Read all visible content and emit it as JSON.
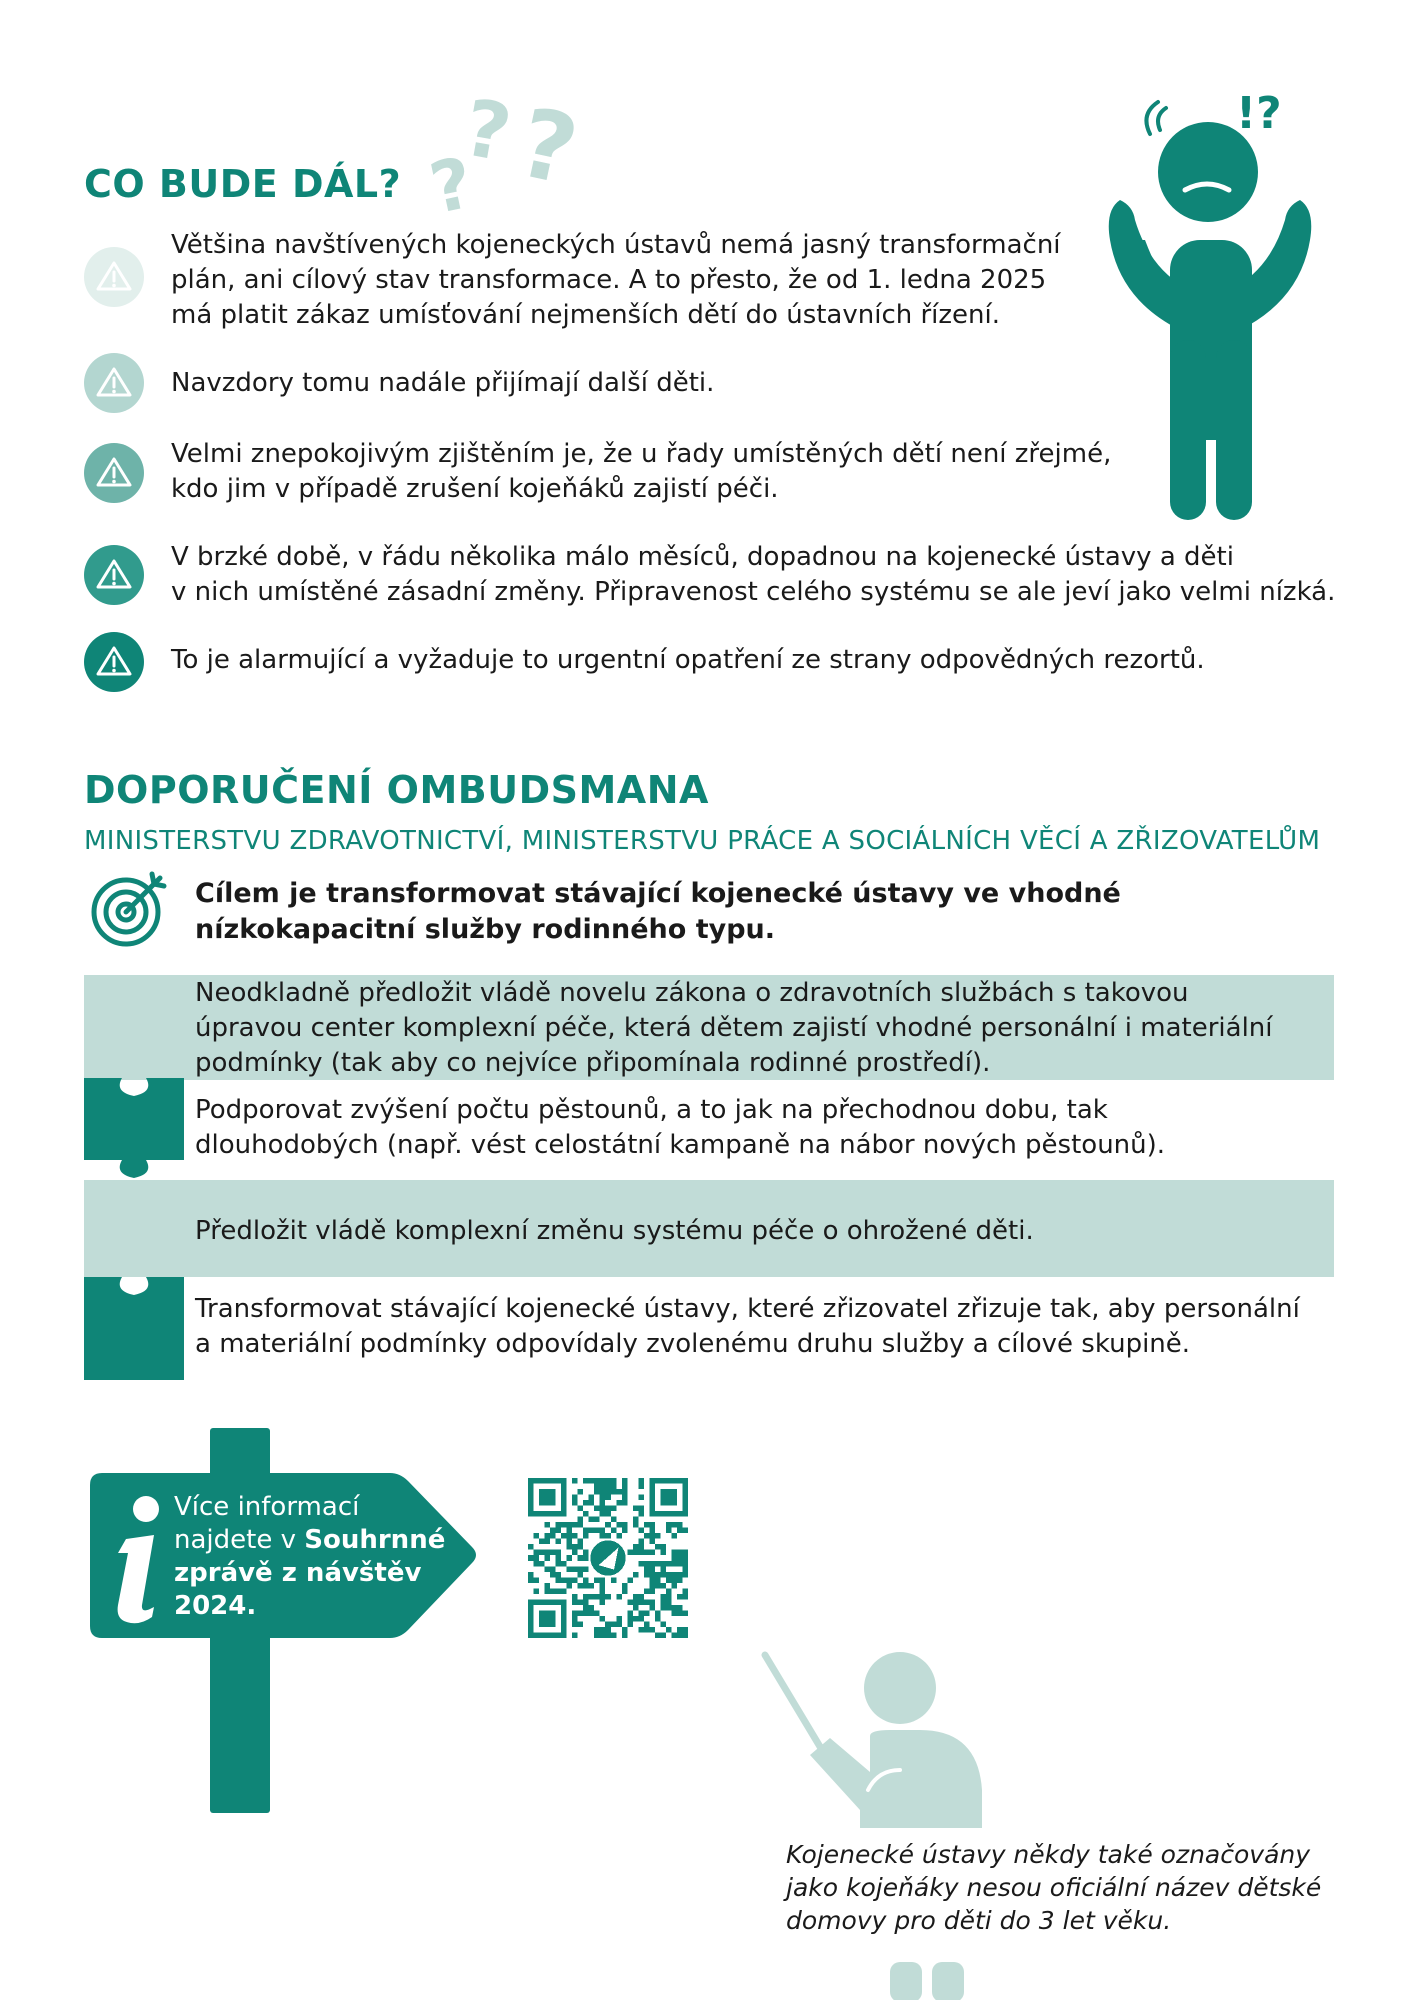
{
  "section1": {
    "title": "CO BUDE DÁL?",
    "items": [
      {
        "lines": [
          "Většina navštívených kojeneckých ústavů nemá jasný transformační",
          "plán, ani cílový stav transformace. A to přesto, že od 1. ledna 2025",
          "má platit zákaz umísťování nejmenších dětí do ústavních řízení."
        ]
      },
      {
        "lines": [
          "Navzdory tomu nadále přijímají další děti."
        ]
      },
      {
        "lines": [
          "Velmi znepokojivým zjištěním je, že u řady umístěných dětí není zřejmé,",
          "kdo jim v případě zrušení kojeňáků zajistí péči."
        ]
      },
      {
        "lines": [
          "V brzké době, v řádu několika málo měsíců, dopadnou na kojenecké ústavy a děti",
          "v nich umístěné zásadní změny. Připravenost celého systému se ale jeví jako velmi nízká."
        ]
      },
      {
        "lines": [
          "To je alarmující a vyžaduje to urgentní opatření ze strany odpovědných rezortů."
        ]
      }
    ],
    "figure_exclaim": "!?"
  },
  "section2": {
    "title": "DOPORUČENÍ OMBUDSMANA",
    "subtitle": "MINISTERSTVU ZDRAVOTNICTVÍ, MINISTERSTVU PRÁCE A SOCIÁLNÍCH VĚCÍ A ZŘIZOVATELŮM",
    "goal_lines": [
      "Cílem je transformovat stávající kojenecké ústavy ve vhodné",
      "nízkokapacitní služby rodinného typu."
    ],
    "recommendations": [
      {
        "lines": [
          "Neodkladně předložit vládě novelu zákona o zdravotních službách s takovou",
          "úpravou center komplexní péče, která dětem zajistí vhodné personální i materiální",
          "podmínky (tak aby co nejvíce připomínala rodinné prostředí)."
        ]
      },
      {
        "lines": [
          "Podporovat zvýšení počtu pěstounů, a to jak na přechodnou dobu, tak",
          "dlouhodobých (např. vést celostátní kampaně na nábor nových pěstounů)."
        ]
      },
      {
        "lines": [
          "Předložit vládě komplexní změnu systému péče o ohrožené děti."
        ]
      },
      {
        "lines": [
          "Transformovat stávající kojenecké ústavy, které zřizovatel zřizuje tak, aby personální",
          "a materiální podmínky odpovídaly zvolenému druhu služby a cílové skupině."
        ]
      }
    ]
  },
  "info": {
    "line1": "Více informací",
    "line2_prefix": "najdete v ",
    "line2_bold": "Souhrnné",
    "line3": "zprávě z návštěv",
    "line4": "2024."
  },
  "footnote": {
    "lines": [
      "Kojenecké ústavy někdy také označovány",
      "jako kojeňáky nesou oficiální název dětské",
      "domovy pro děti do 3 let věku."
    ]
  },
  "colors": {
    "teal": "#0f8577",
    "light_teal": "#c1dcd7"
  }
}
